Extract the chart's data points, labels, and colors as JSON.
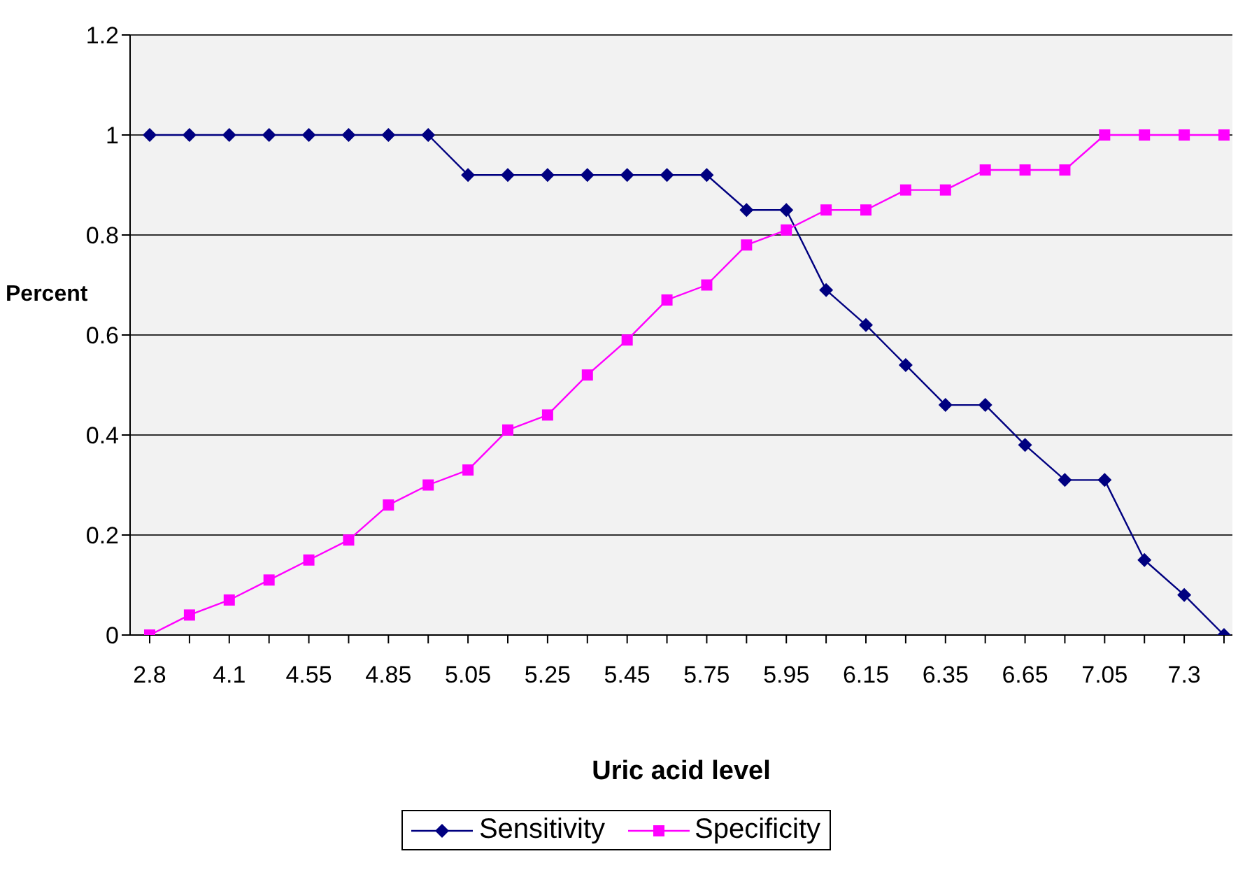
{
  "chart_data": {
    "type": "line",
    "xlabel": "Uric acid level",
    "ylabel": "Percent",
    "categories": [
      "2.8",
      null,
      "4.1",
      null,
      "4.55",
      null,
      "4.85",
      null,
      "5.05",
      null,
      "5.25",
      null,
      "5.45",
      null,
      "5.75",
      null,
      "5.95",
      null,
      "6.15",
      null,
      "6.35",
      null,
      "6.65",
      null,
      "7.05",
      null,
      "7.3",
      null
    ],
    "series": [
      {
        "name": "Sensitivity",
        "color": "#000080",
        "marker": "diamond",
        "values": [
          1,
          1,
          1,
          1,
          1,
          1,
          1,
          1,
          0.92,
          0.92,
          0.92,
          0.92,
          0.92,
          0.92,
          0.92,
          0.85,
          0.85,
          0.69,
          0.62,
          0.54,
          0.46,
          0.46,
          0.38,
          0.31,
          0.31,
          0.15,
          0.08,
          0
        ]
      },
      {
        "name": "Specificity",
        "color": "#ff00ff",
        "marker": "square",
        "values": [
          0,
          0.04,
          0.07,
          0.11,
          0.15,
          0.19,
          0.26,
          0.3,
          0.33,
          0.41,
          0.44,
          0.52,
          0.59,
          0.67,
          0.7,
          0.78,
          0.81,
          0.85,
          0.85,
          0.89,
          0.89,
          0.93,
          0.93,
          0.93,
          1,
          1,
          1,
          1
        ]
      }
    ],
    "ylim": [
      0,
      1.2
    ],
    "yticks": [
      0,
      0.2,
      0.4,
      0.6,
      0.8,
      1,
      1.2
    ],
    "grid": "y",
    "legend": "bottom"
  }
}
